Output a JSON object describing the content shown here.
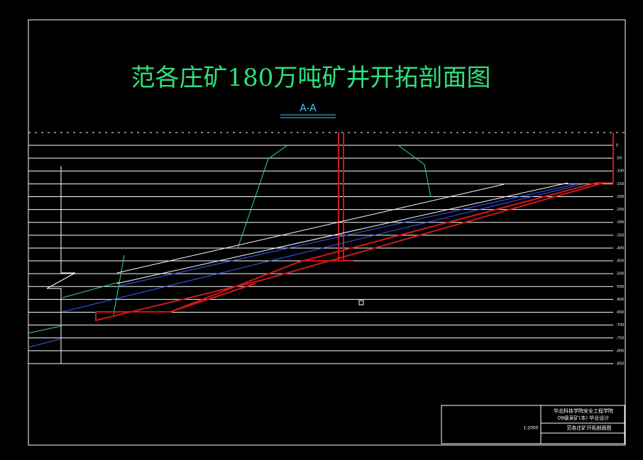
{
  "header": {
    "title": "范各庄矿180万吨矿井开拓剖面图",
    "section": "A-A"
  },
  "levels": [
    "0",
    "-50",
    "-100",
    "-150",
    "-200",
    "-250",
    "-300",
    "-350",
    "-400",
    "-450",
    "-500",
    "-550",
    "-600",
    "-650",
    "-700",
    "-750",
    "-800",
    "-850"
  ],
  "title_block": {
    "school": "华北科技学院安全工程学院",
    "project": "09级采矿(本) 毕业设计",
    "drawing": "范各庄矿开拓剖面图",
    "scale": "1:2000"
  }
}
